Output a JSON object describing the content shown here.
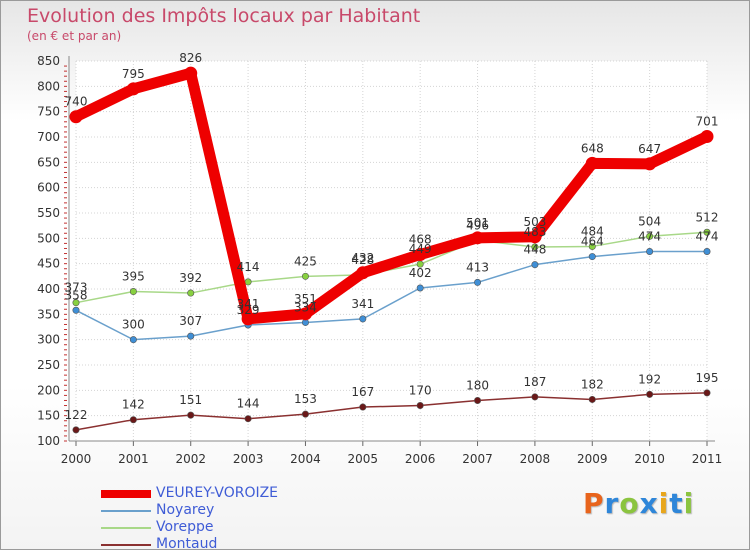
{
  "title": "Evolution des Impôts locaux par Habitant",
  "subtitle": "(en € et par an)",
  "logo": {
    "letters": [
      {
        "ch": "P",
        "color": "#e8641c"
      },
      {
        "ch": "r",
        "color": "#2e86d9"
      },
      {
        "ch": "o",
        "color": "#8bc43f"
      },
      {
        "ch": "x",
        "color": "#2e86d9"
      },
      {
        "ch": "i",
        "color": "#e8a61c"
      },
      {
        "ch": "t",
        "color": "#2e86d9"
      },
      {
        "ch": "i",
        "color": "#8bc43f"
      }
    ]
  },
  "chart_data": {
    "type": "line",
    "title": "Evolution des Impôts locaux par Habitant",
    "subtitle": "(en € et par an)",
    "x": [
      "2000",
      "2001",
      "2002",
      "2003",
      "2004",
      "2005",
      "2006",
      "2007",
      "2008",
      "2009",
      "2010",
      "2011"
    ],
    "ylim": [
      100,
      850
    ],
    "yticks": [
      100,
      150,
      200,
      250,
      300,
      350,
      400,
      450,
      500,
      550,
      600,
      650,
      700,
      750,
      800,
      850
    ],
    "grid": true,
    "legend_position": "bottom-left",
    "series": [
      {
        "name": "VEUREY-VOROIZE",
        "color": "#ee0000",
        "marker": "#ee0000",
        "values": [
          740,
          795,
          826,
          341,
          351,
          432,
          468,
          501,
          503,
          648,
          647,
          701
        ]
      },
      {
        "name": "Noyarey",
        "color": "#6aa0cc",
        "marker": "#3f8fd6",
        "values": [
          358,
          300,
          307,
          329,
          334,
          341,
          402,
          413,
          448,
          464,
          474,
          474
        ]
      },
      {
        "name": "Voreppe",
        "color": "#a8d888",
        "marker": "#88d040",
        "values": [
          373,
          395,
          392,
          414,
          425,
          428,
          449,
          496,
          483,
          484,
          504,
          512
        ]
      },
      {
        "name": "Montaud",
        "color": "#8a3030",
        "marker": "#6a1818",
        "values": [
          122,
          142,
          151,
          144,
          153,
          167,
          170,
          180,
          187,
          182,
          192,
          195
        ]
      }
    ]
  }
}
